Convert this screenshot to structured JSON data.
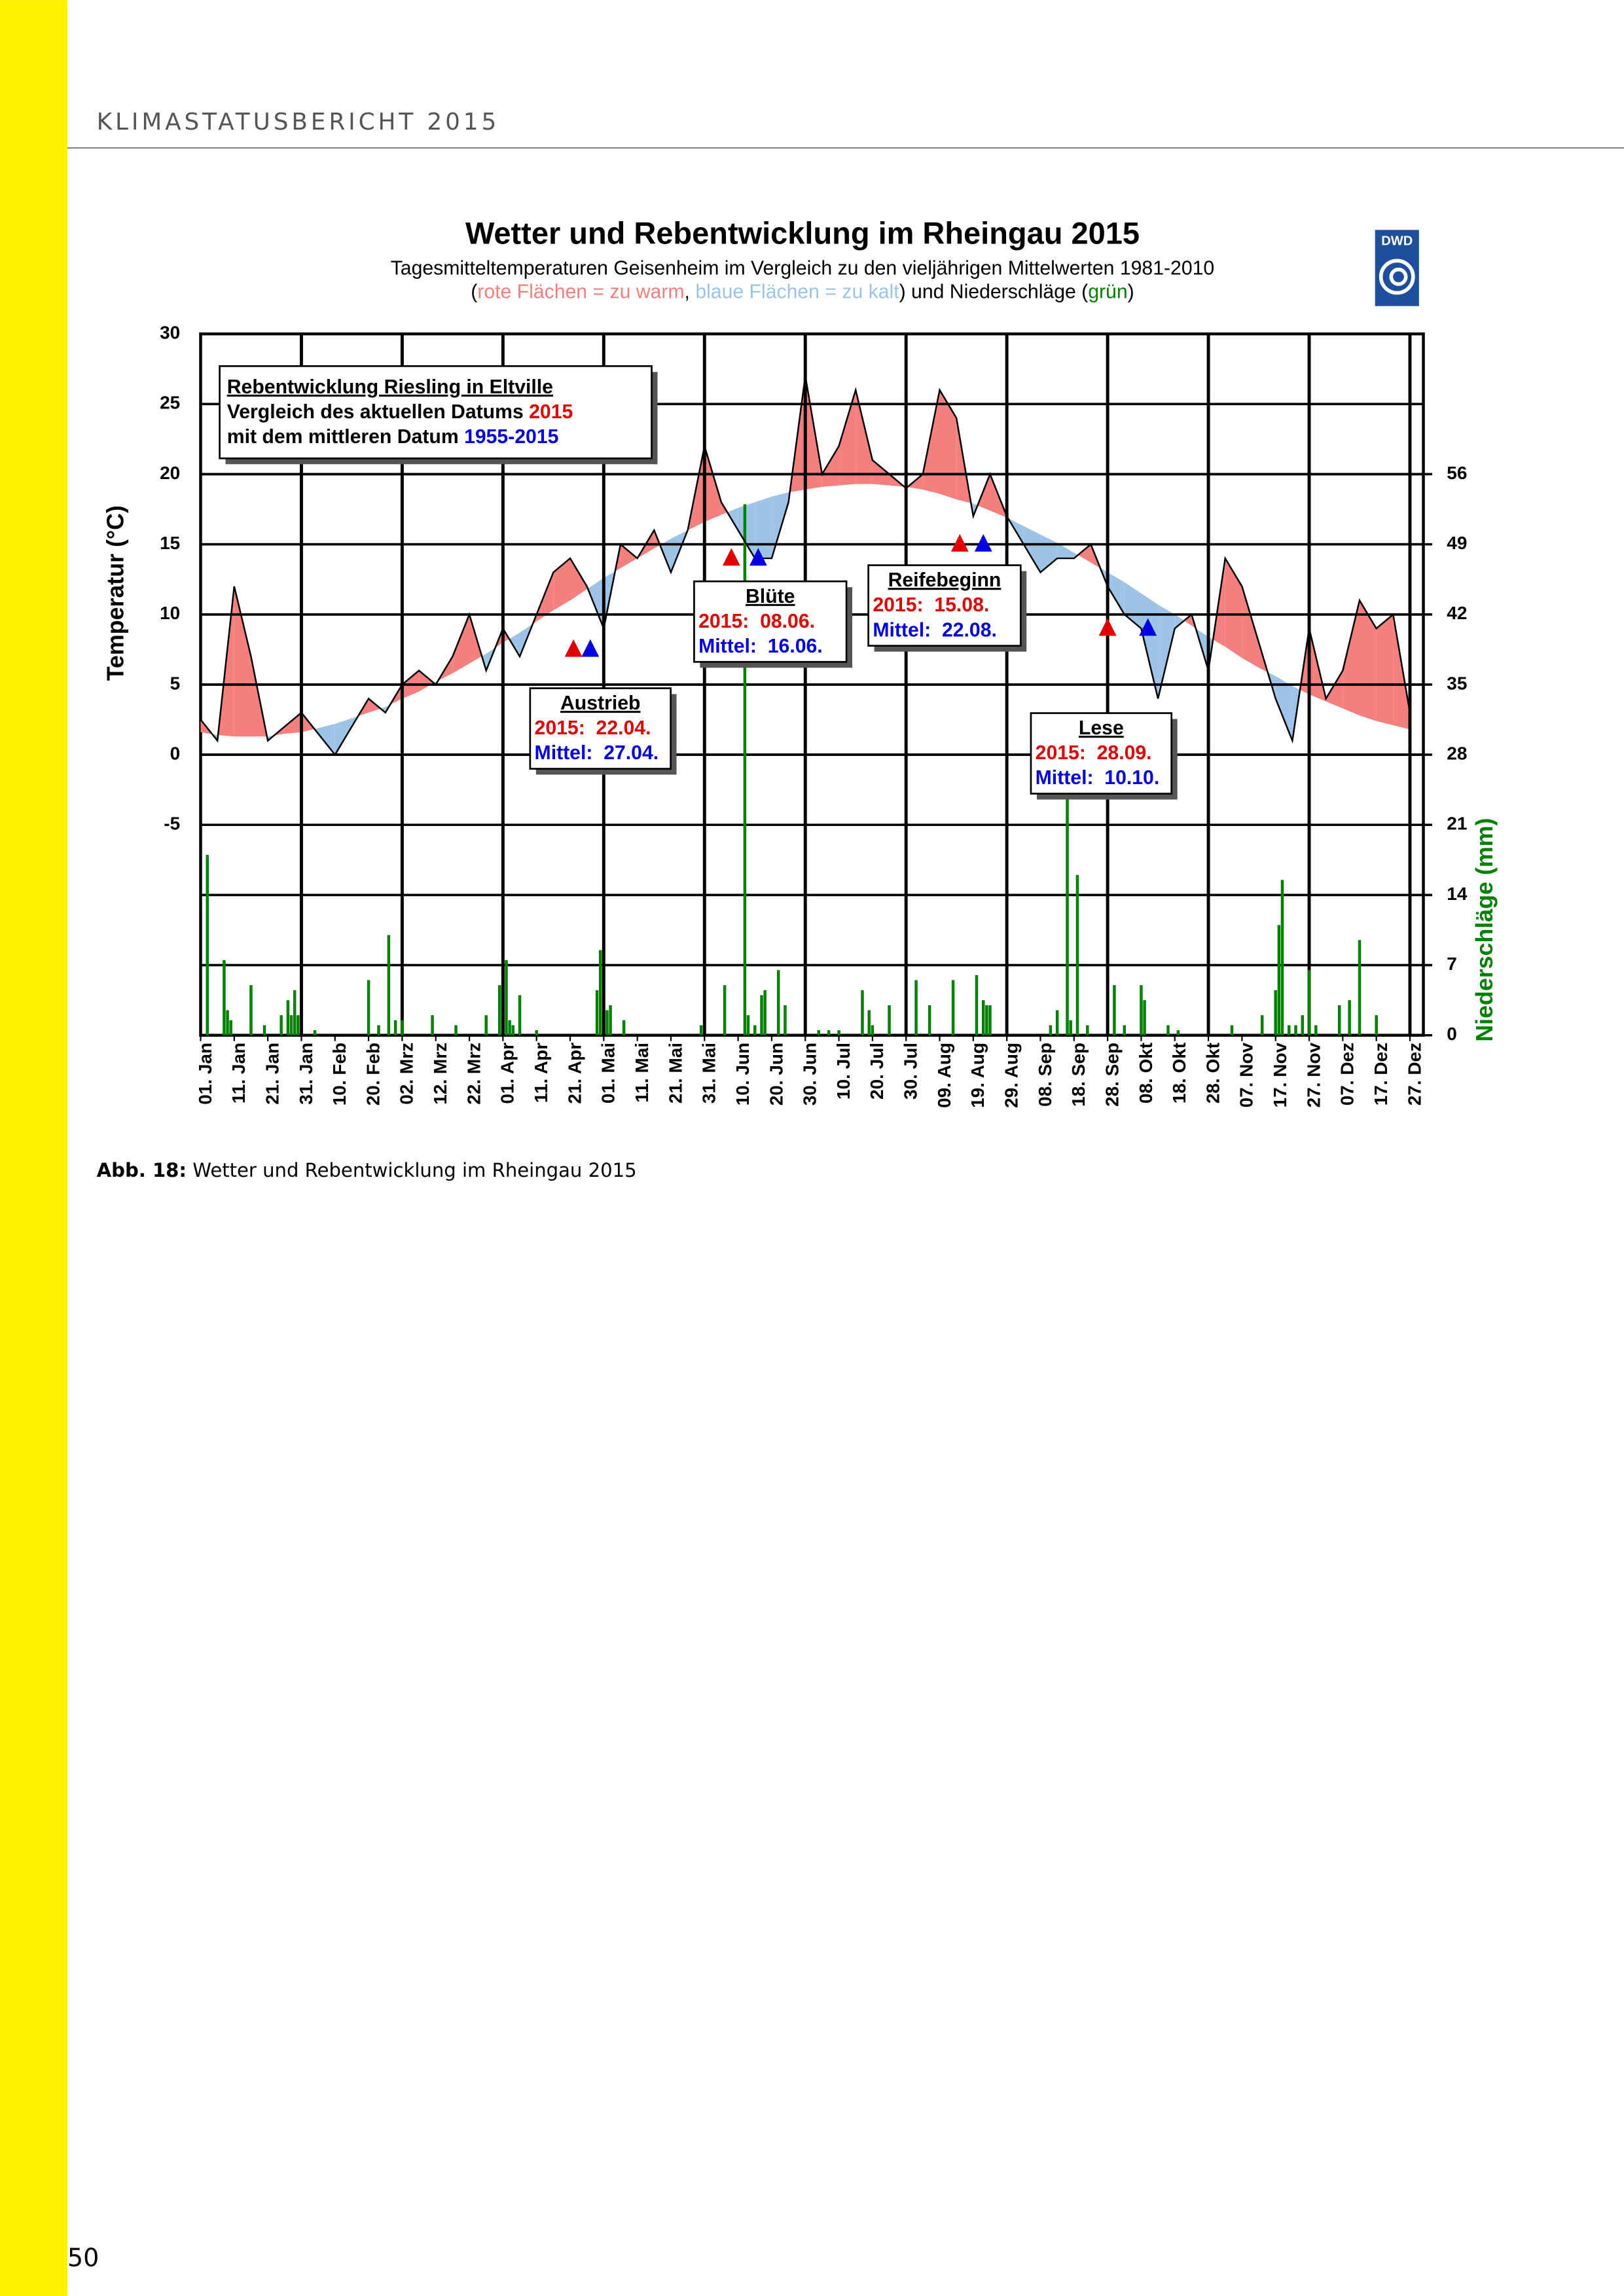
{
  "header": {
    "title": "KLIMASTATUSBERICHT 2015"
  },
  "chart_data": {
    "type": "line",
    "title": "Wetter und Rebentwicklung im Rheingau 2015",
    "subtitle": "Tagesmitteltemperaturen Geisenheim im Vergleich zu den vieljährigen Mittelwerten 1981-2010",
    "subtitle2": [
      {
        "text": "(",
        "color": "#000000"
      },
      {
        "text": "rote Flächen = zu warm",
        "color": "#f47f7f"
      },
      {
        "text": ", ",
        "color": "#000000"
      },
      {
        "text": "blaue Flächen = zu kalt",
        "color": "#9dc3e6"
      },
      {
        "text": ") und Niederschläge (",
        "color": "#000000"
      },
      {
        "text": "grün",
        "color": "#008000"
      },
      {
        "text": ")",
        "color": "#000000"
      }
    ],
    "logo": "DWD",
    "ylabel": "Temperatur (°C)",
    "y2label": "Niederschläge (mm)",
    "y2label_color": "#008000",
    "grid": true,
    "warm_color": "#f47f7f",
    "cold_color": "#9dc3e6",
    "xlim": [
      1,
      365
    ],
    "xticks": [
      {
        "value": 1,
        "label": "01. Jan"
      },
      {
        "value": 11,
        "label": "11. Jan"
      },
      {
        "value": 21,
        "label": "21. Jan"
      },
      {
        "value": 31,
        "label": "31. Jan"
      },
      {
        "value": 41,
        "label": "10. Feb"
      },
      {
        "value": 51,
        "label": "20. Feb"
      },
      {
        "value": 61,
        "label": "02. Mrz"
      },
      {
        "value": 71,
        "label": "12. Mrz"
      },
      {
        "value": 81,
        "label": "22. Mrz"
      },
      {
        "value": 91,
        "label": "01. Apr"
      },
      {
        "value": 101,
        "label": "11. Apr"
      },
      {
        "value": 111,
        "label": "21. Apr"
      },
      {
        "value": 121,
        "label": "01. Mai"
      },
      {
        "value": 131,
        "label": "11. Mai"
      },
      {
        "value": 141,
        "label": "21. Mai"
      },
      {
        "value": 151,
        "label": "31. Mai"
      },
      {
        "value": 161,
        "label": "10. Jun"
      },
      {
        "value": 171,
        "label": "20. Jun"
      },
      {
        "value": 181,
        "label": "30. Jun"
      },
      {
        "value": 191,
        "label": "10. Jul"
      },
      {
        "value": 201,
        "label": "20. Jul"
      },
      {
        "value": 211,
        "label": "30. Jul"
      },
      {
        "value": 221,
        "label": "09. Aug"
      },
      {
        "value": 231,
        "label": "19. Aug"
      },
      {
        "value": 241,
        "label": "29. Aug"
      },
      {
        "value": 251,
        "label": "08. Sep"
      },
      {
        "value": 261,
        "label": "18. Sep"
      },
      {
        "value": 271,
        "label": "28. Sep"
      },
      {
        "value": 281,
        "label": "08. Okt"
      },
      {
        "value": 291,
        "label": "18. Okt"
      },
      {
        "value": 301,
        "label": "28. Okt"
      },
      {
        "value": 311,
        "label": "07. Nov"
      },
      {
        "value": 321,
        "label": "17. Nov"
      },
      {
        "value": 331,
        "label": "27. Nov"
      },
      {
        "value": 341,
        "label": "07. Dez"
      },
      {
        "value": 351,
        "label": "17. Dez"
      },
      {
        "value": 361,
        "label": "27. Dez"
      }
    ],
    "ylim": [
      -20,
      30
    ],
    "yticks": [
      -5,
      0,
      5,
      10,
      15,
      20,
      25,
      30
    ],
    "y2lim": [
      0,
      70
    ],
    "y2ticks": [
      0,
      7,
      14,
      21,
      28,
      35,
      42,
      49,
      56
    ],
    "series": [
      {
        "color": "#000000",
        "x": [
          1,
          6,
          11,
          16,
          21,
          26,
          31,
          36,
          41,
          46,
          51,
          56,
          61,
          66,
          71,
          76,
          81,
          86,
          91,
          96,
          101,
          106,
          111,
          116,
          121,
          126,
          131,
          136,
          141,
          146,
          151,
          156,
          161,
          166,
          171,
          176,
          181,
          186,
          191,
          196,
          201,
          206,
          211,
          216,
          221,
          226,
          231,
          236,
          241,
          246,
          251,
          256,
          261,
          266,
          271,
          276,
          281,
          286,
          291,
          296,
          301,
          306,
          311,
          316,
          321,
          326,
          331,
          336,
          341,
          346,
          351,
          356,
          361
        ],
        "values": [
          2.5,
          1,
          12,
          7,
          1,
          2,
          3,
          1.5,
          0,
          2,
          4,
          3,
          5,
          6,
          5,
          7,
          10,
          6,
          9,
          7,
          10,
          13,
          14,
          12,
          9,
          15,
          14,
          16,
          13,
          16,
          22,
          18,
          16,
          14,
          14,
          18,
          27,
          20,
          22,
          26,
          21,
          20,
          19,
          20,
          26,
          24,
          17,
          20,
          17,
          15,
          13,
          14,
          14,
          15,
          12,
          10,
          9,
          4,
          9,
          10,
          6,
          14,
          12,
          8,
          4,
          1,
          9,
          4,
          6,
          11,
          9,
          10,
          3
        ]
      },
      {
        "x": [
          1,
          6,
          11,
          16,
          21,
          26,
          31,
          36,
          41,
          46,
          51,
          56,
          61,
          66,
          71,
          76,
          81,
          86,
          91,
          96,
          101,
          106,
          111,
          116,
          121,
          126,
          131,
          136,
          141,
          146,
          151,
          156,
          161,
          166,
          171,
          176,
          181,
          186,
          191,
          196,
          201,
          206,
          211,
          216,
          221,
          226,
          231,
          236,
          241,
          246,
          251,
          256,
          261,
          266,
          271,
          276,
          281,
          286,
          291,
          296,
          301,
          306,
          311,
          316,
          321,
          326,
          331,
          336,
          341,
          346,
          351,
          356,
          361
        ],
        "values": [
          1.6,
          1.4,
          1.3,
          1.3,
          1.3,
          1.5,
          1.6,
          1.9,
          2.2,
          2.6,
          3.0,
          3.4,
          4.0,
          4.5,
          5.2,
          5.8,
          6.5,
          7.2,
          8.0,
          8.7,
          9.5,
          10.3,
          11.0,
          11.8,
          12.6,
          13.3,
          14.0,
          14.7,
          15.4,
          16.0,
          16.6,
          17.1,
          17.6,
          18.0,
          18.4,
          18.7,
          18.9,
          19.1,
          19.2,
          19.3,
          19.3,
          19.2,
          19.1,
          18.9,
          18.6,
          18.2,
          17.9,
          17.4,
          16.9,
          16.3,
          15.7,
          15.1,
          14.4,
          13.7,
          13.0,
          12.3,
          11.5,
          10.7,
          10.0,
          9.2,
          8.4,
          7.7,
          6.9,
          6.2,
          5.6,
          4.9,
          4.3,
          3.8,
          3.3,
          2.8,
          2.4,
          2.1,
          1.8
        ]
      },
      {
        "type": "bar",
        "axis": "y2",
        "color": "#008000",
        "x": [
          3,
          8,
          9,
          10,
          16,
          20,
          25,
          27,
          28,
          29,
          30,
          35,
          51,
          54,
          57,
          59,
          61,
          70,
          77,
          86,
          90,
          92,
          93,
          94,
          96,
          101,
          119,
          120,
          122,
          123,
          127,
          150,
          157,
          163,
          164,
          166,
          168,
          169,
          173,
          175,
          185,
          188,
          191,
          198,
          200,
          201,
          206,
          214,
          218,
          225,
          232,
          234,
          235,
          236,
          254,
          256,
          259,
          260,
          262,
          265,
          273,
          276,
          281,
          282,
          289,
          292,
          308,
          317,
          321,
          322,
          323,
          325,
          327,
          329,
          331,
          333,
          340,
          343,
          346,
          351
        ],
        "values": [
          18,
          7.5,
          2.5,
          1.5,
          5,
          1,
          2,
          3.5,
          2,
          4.5,
          2,
          0.5,
          5.5,
          1,
          10,
          1.5,
          1.5,
          2,
          1,
          2,
          5,
          7.5,
          1.5,
          1,
          4,
          0.5,
          4.5,
          8.5,
          2.5,
          3,
          1.5,
          1,
          5,
          53,
          2,
          1,
          4,
          4.5,
          6.5,
          3,
          0.5,
          0.5,
          0.5,
          4.5,
          2.5,
          1,
          3,
          5.5,
          3,
          5.5,
          6,
          3.5,
          3,
          3,
          1,
          2.5,
          24,
          1.5,
          16,
          1,
          5,
          1,
          5,
          3.5,
          1,
          0.5,
          1,
          2,
          4.5,
          11,
          15.5,
          1,
          1,
          2,
          6.5,
          1,
          3,
          3.5,
          9.5,
          2
        ]
      }
    ],
    "color_2015": "#e00000",
    "color_mean": "#0000e0",
    "legend_box": [
      [
        {
          "text": "Rebentwicklung Riesling in Eltville",
          "color": "#000000"
        }
      ],
      [
        {
          "text": "Vergleich des aktuellen Datums ",
          "color": "#000000"
        },
        {
          "text": "2015",
          "color": "#e00000"
        }
      ],
      [
        {
          "text": "mit dem mittleren Datum ",
          "color": "#000000"
        },
        {
          "text": "1955-2015",
          "color": "#0000e0"
        }
      ]
    ],
    "phases": [
      {
        "title": "Austrieb",
        "label_2015": "2015:  22.04.",
        "label_mean": "Mittel:  27.04.",
        "x_2015": 112,
        "x_mean": 117,
        "y": 7.5
      },
      {
        "title": "Blüte",
        "label_2015": "2015:  08.06.",
        "label_mean": "Mittel:  16.06.",
        "x_2015": 159,
        "x_mean": 167,
        "y": 14
      },
      {
        "title": "Reifebeginn",
        "label_2015": "2015:  15.08.",
        "label_mean": "Mittel:  22.08.",
        "x_2015": 227,
        "x_mean": 234,
        "y": 15
      },
      {
        "title": "Lese",
        "label_2015": "2015:  28.09.",
        "label_mean": "Mittel:  10.10.",
        "x_2015": 271,
        "x_mean": 283,
        "y": 9
      }
    ]
  },
  "caption": {
    "label": "Abb. 18:",
    "text": " Wetter und Rebentwicklung im Rheingau 2015"
  },
  "page_number": "50"
}
